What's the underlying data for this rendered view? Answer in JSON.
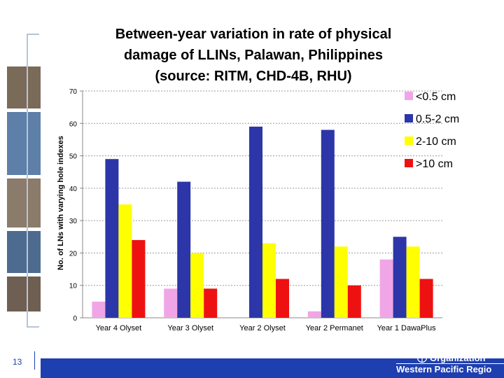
{
  "colors": {
    "pink": "#f0a6e6",
    "navy": "#2c36a8",
    "yellow": "#ffff00",
    "red": "#ee1111",
    "brand_bar": "#1e3fb0"
  },
  "footer": {
    "page_number": "13",
    "org_name": "Organization",
    "org_region": "Western Pacific Regio",
    "emblem_icon": "who-emblem-icon"
  },
  "chart_data": {
    "type": "bar",
    "title": "Between-year variation in rate of physical\ndamage of LLINs, Palawan, Philippines\n(source: RITM,  CHD-4B, RHU)",
    "xlabel": "",
    "ylabel": "No. of LNs with varying hole indexes",
    "ylim": [
      0,
      70
    ],
    "yticks": [
      "0",
      "10",
      "20",
      "30",
      "40",
      "50",
      "60",
      "70"
    ],
    "grid": true,
    "legend_position": "right",
    "categories": [
      "Year 4 Olyset",
      "Year 3 Olyset",
      "Year 2 Olyset",
      "Year 2 Permanet",
      "Year 1 DawaPlus"
    ],
    "series": [
      {
        "name": "<0.5 cm",
        "color": "#f0a6e6",
        "values": [
          5,
          9,
          0,
          2,
          18
        ]
      },
      {
        "name": "0.5-2 cm",
        "color": "#2c36a8",
        "values": [
          49,
          42,
          59,
          58,
          25
        ]
      },
      {
        "name": "2-10 cm",
        "color": "#ffff00",
        "values": [
          35,
          20,
          23,
          22,
          22
        ]
      },
      {
        "name": ">10 cm",
        "color": "#ee1111",
        "values": [
          24,
          9,
          12,
          10,
          12
        ]
      }
    ]
  }
}
